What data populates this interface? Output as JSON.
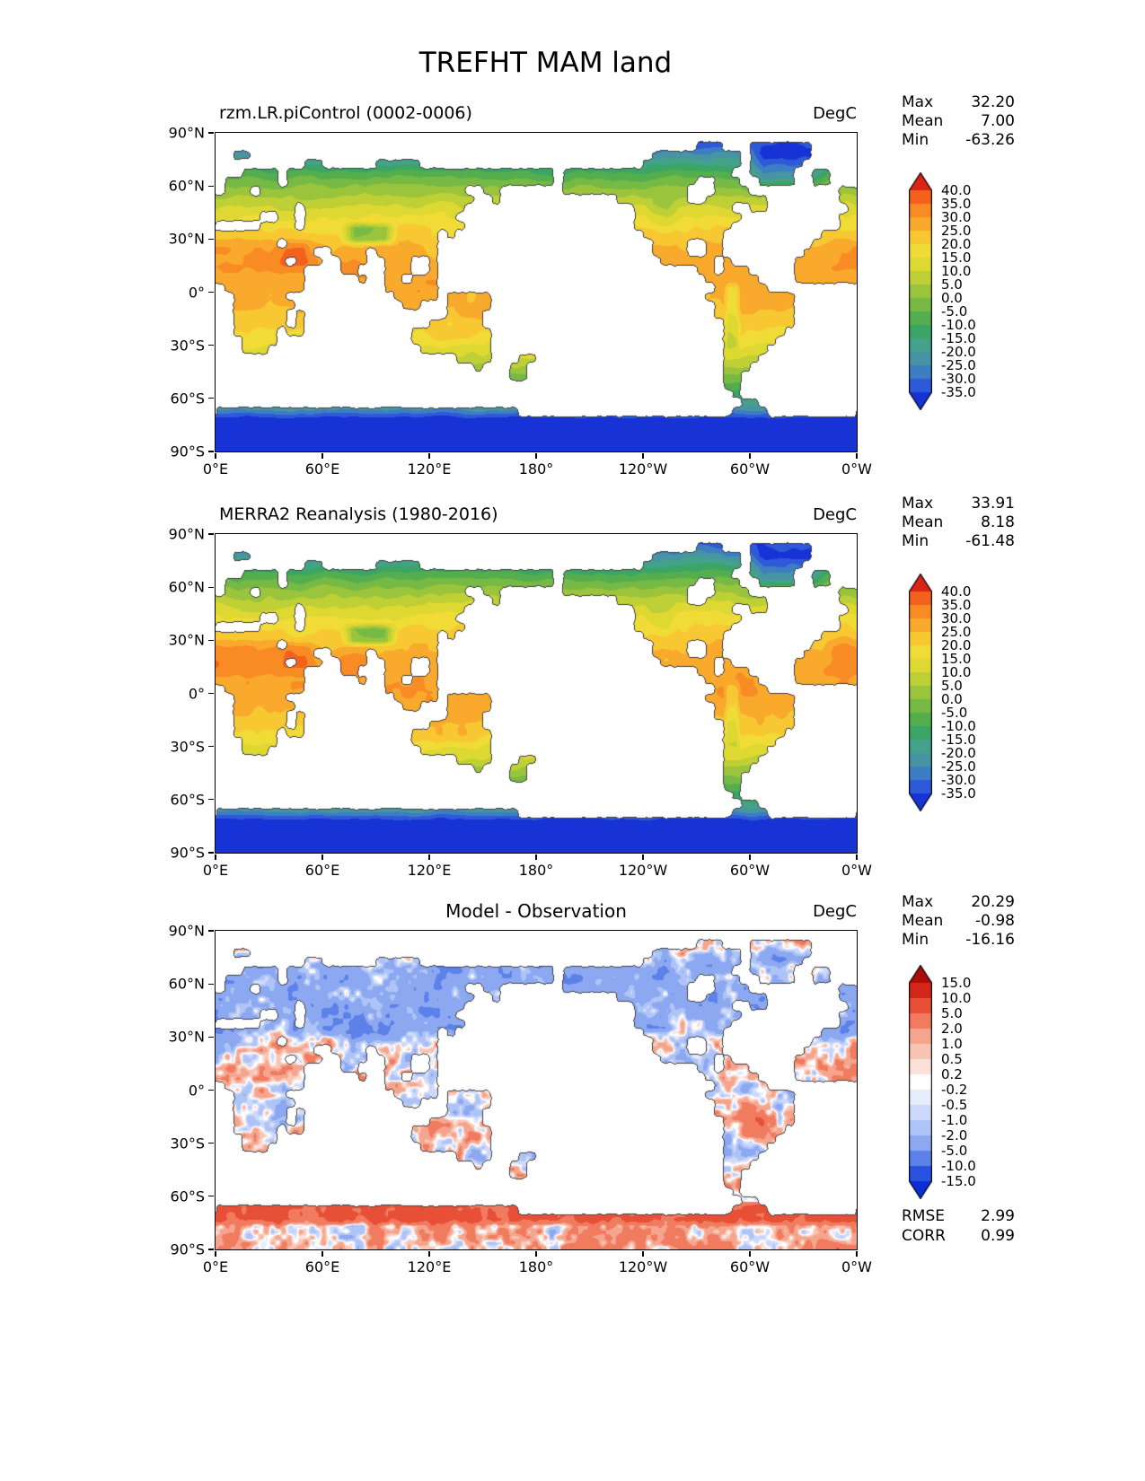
{
  "figure_title": "TREFHT MAM land",
  "axes": {
    "x_ticks": [
      "0°E",
      "60°E",
      "120°E",
      "180°",
      "120°W",
      "60°W",
      "0°W"
    ],
    "y_ticks": [
      "90°N",
      "60°N",
      "30°N",
      "0°",
      "30°S",
      "60°S",
      "90°S"
    ]
  },
  "map_colors": {
    "ocean": "#ffffff",
    "coastline": "#404040"
  },
  "chart_data": [
    {
      "type": "heatmap",
      "panel": "model",
      "title": "rzm.LR.piControl (0002-0006)",
      "title_align": "left",
      "units": "DegC",
      "field": "temperature",
      "projection": "cylindrical-equidistant",
      "lon_range_labels": [
        "0°E",
        "0°W"
      ],
      "lat_range_labels": [
        "90°N",
        "90°S"
      ],
      "stats": [
        {
          "label": "Max",
          "value": "32.20",
          "num": 32.2
        },
        {
          "label": "Mean",
          "value": "7.00",
          "num": 7.0
        },
        {
          "label": "Min",
          "value": "-63.26",
          "num": -63.26
        }
      ],
      "colorbar": {
        "tick_labels": [
          "40.0",
          "35.0",
          "30.0",
          "25.0",
          "20.0",
          "15.0",
          "10.0",
          "5.0",
          "0.0",
          "-5.0",
          "-10.0",
          "-15.0",
          "-20.0",
          "-25.0",
          "-30.0",
          "-35.0"
        ],
        "levels": [
          40,
          35,
          30,
          25,
          20,
          15,
          10,
          5,
          0,
          -5,
          -10,
          -15,
          -20,
          -25,
          -30,
          -35
        ],
        "colors_low_to_high": [
          "#1733d5",
          "#2e59d8",
          "#3d7ec3",
          "#4694a4",
          "#43a289",
          "#3aa565",
          "#55ae4e",
          "#76ba45",
          "#9ac43c",
          "#bfcf36",
          "#ded832",
          "#f1db36",
          "#f7c832",
          "#f9a92b",
          "#f88b24",
          "#f3611c",
          "#da2416"
        ]
      }
    },
    {
      "type": "heatmap",
      "panel": "observation",
      "title": "MERRA2 Reanalysis (1980-2016)",
      "title_align": "left",
      "units": "DegC",
      "field": "temperature",
      "projection": "cylindrical-equidistant",
      "lon_range_labels": [
        "0°E",
        "0°W"
      ],
      "lat_range_labels": [
        "90°N",
        "90°S"
      ],
      "stats": [
        {
          "label": "Max",
          "value": "33.91",
          "num": 33.91
        },
        {
          "label": "Mean",
          "value": "8.18",
          "num": 8.18
        },
        {
          "label": "Min",
          "value": "-61.48",
          "num": -61.48
        }
      ],
      "colorbar": {
        "tick_labels": [
          "40.0",
          "35.0",
          "30.0",
          "25.0",
          "20.0",
          "15.0",
          "10.0",
          "5.0",
          "0.0",
          "-5.0",
          "-10.0",
          "-15.0",
          "-20.0",
          "-25.0",
          "-30.0",
          "-35.0"
        ],
        "levels": [
          40,
          35,
          30,
          25,
          20,
          15,
          10,
          5,
          0,
          -5,
          -10,
          -15,
          -20,
          -25,
          -30,
          -35
        ],
        "colors_low_to_high": [
          "#1733d5",
          "#2e59d8",
          "#3d7ec3",
          "#4694a4",
          "#43a289",
          "#3aa565",
          "#55ae4e",
          "#76ba45",
          "#9ac43c",
          "#bfcf36",
          "#ded832",
          "#f1db36",
          "#f7c832",
          "#f9a92b",
          "#f88b24",
          "#f3611c",
          "#da2416"
        ]
      }
    },
    {
      "type": "heatmap",
      "panel": "difference",
      "title": "Model - Observation",
      "title_align": "center",
      "units": "DegC",
      "field": "difference",
      "projection": "cylindrical-equidistant",
      "lon_range_labels": [
        "0°E",
        "0°W"
      ],
      "lat_range_labels": [
        "90°N",
        "90°S"
      ],
      "stats": [
        {
          "label": "Max",
          "value": "20.29",
          "num": 20.29
        },
        {
          "label": "Mean",
          "value": "-0.98",
          "num": -0.98
        },
        {
          "label": "Min",
          "value": "-16.16",
          "num": -16.16
        }
      ],
      "extra_stats": [
        {
          "label": "RMSE",
          "value": "2.99",
          "num": 2.99
        },
        {
          "label": "CORR",
          "value": "0.99",
          "num": 0.99
        }
      ],
      "colorbar": {
        "tick_labels": [
          "15.0",
          "10.0",
          "5.0",
          "2.0",
          "1.0",
          "0.5",
          "0.2",
          "-0.2",
          "-0.5",
          "-1.0",
          "-2.0",
          "-5.0",
          "-10.0",
          "-15.0"
        ],
        "levels": [
          15,
          10,
          5,
          2,
          1,
          0.5,
          0.2,
          -0.2,
          -0.5,
          -1,
          -2,
          -5,
          -10,
          -15
        ],
        "colors_low_to_high": [
          "#0c2fd5",
          "#2a52e0",
          "#5c82ea",
          "#8ba8f1",
          "#afc4f6",
          "#cdd9fa",
          "#e7edfc",
          "#ffffff",
          "#fbe1d8",
          "#f8c5b5",
          "#f5a58e",
          "#f07b5f",
          "#e75037",
          "#d3271b",
          "#ad0c0c"
        ]
      }
    }
  ]
}
